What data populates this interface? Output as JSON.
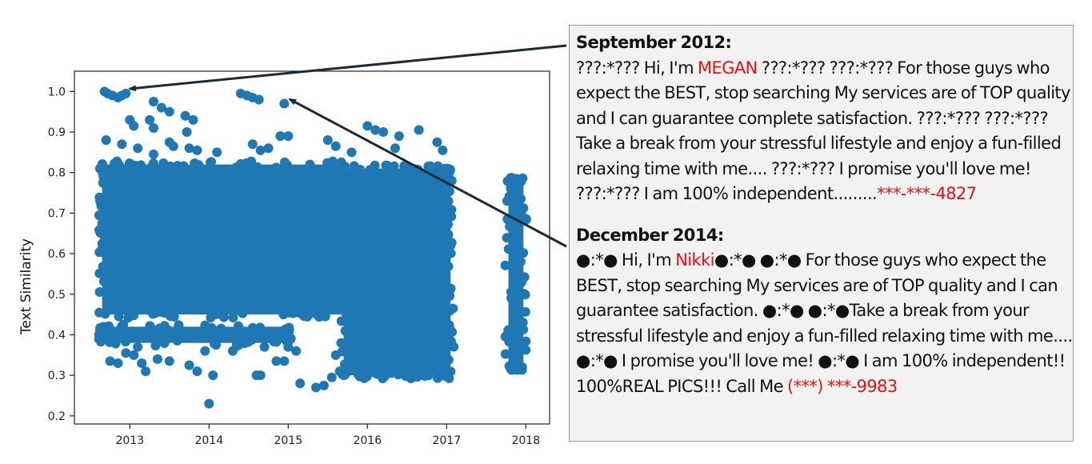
{
  "chart_data": {
    "type": "scatter",
    "title": "",
    "xlabel": "",
    "ylabel": "Text Similarity",
    "xlim": [
      2012.3,
      2018.3
    ],
    "ylim": [
      0.18,
      1.05
    ],
    "xticks": [
      "2013",
      "2014",
      "2015",
      "2016",
      "2017",
      "2018"
    ],
    "yticks": [
      "0.2",
      "0.3",
      "0.4",
      "0.5",
      "0.6",
      "0.7",
      "0.8",
      "0.9",
      "1.0"
    ],
    "grid": false,
    "color": "#1f77b4",
    "dense_regions": [
      {
        "x": [
          2012.65,
          2015.7
        ],
        "y": [
          0.45,
          0.82
        ]
      },
      {
        "x": [
          2015.7,
          2017.05
        ],
        "y": [
          0.3,
          0.81
        ]
      },
      {
        "x": [
          2012.65,
          2015.0
        ],
        "y": [
          0.38,
          0.42
        ]
      },
      {
        "x": [
          2017.78,
          2017.97
        ],
        "y": [
          0.32,
          0.78
        ]
      }
    ],
    "points": [
      [
        2012.68,
        1.0
      ],
      [
        2012.72,
        0.995
      ],
      [
        2012.78,
        0.99
      ],
      [
        2012.85,
        0.985
      ],
      [
        2012.9,
        0.99
      ],
      [
        2012.95,
        0.995
      ],
      [
        2013.3,
        0.975
      ],
      [
        2014.4,
        0.995
      ],
      [
        2014.48,
        0.99
      ],
      [
        2014.55,
        0.985
      ],
      [
        2014.63,
        0.98
      ],
      [
        2014.95,
        0.97
      ],
      [
        2012.7,
        0.88
      ],
      [
        2012.9,
        0.87
      ],
      [
        2013.0,
        0.93
      ],
      [
        2013.05,
        0.915
      ],
      [
        2013.25,
        0.93
      ],
      [
        2013.3,
        0.91
      ],
      [
        2013.4,
        0.96
      ],
      [
        2013.5,
        0.95
      ],
      [
        2013.7,
        0.94
      ],
      [
        2013.72,
        0.9
      ],
      [
        2013.8,
        0.93
      ],
      [
        2013.5,
        0.875
      ],
      [
        2013.55,
        0.865
      ],
      [
        2013.1,
        0.86
      ],
      [
        2013.3,
        0.845
      ],
      [
        2013.75,
        0.86
      ],
      [
        2013.85,
        0.855
      ],
      [
        2014.1,
        0.85
      ],
      [
        2014.55,
        0.87
      ],
      [
        2014.65,
        0.855
      ],
      [
        2014.9,
        0.89
      ],
      [
        2015.0,
        0.89
      ],
      [
        2014.75,
        0.86
      ],
      [
        2015.5,
        0.88
      ],
      [
        2015.6,
        0.865
      ],
      [
        2015.8,
        0.85
      ],
      [
        2016.0,
        0.915
      ],
      [
        2016.1,
        0.905
      ],
      [
        2016.2,
        0.9
      ],
      [
        2016.4,
        0.89
      ],
      [
        2016.65,
        0.905
      ],
      [
        2016.88,
        0.875
      ],
      [
        2016.95,
        0.855
      ],
      [
        2016.35,
        0.86
      ],
      [
        2014.0,
        0.23
      ],
      [
        2012.75,
        0.335
      ],
      [
        2012.85,
        0.33
      ],
      [
        2012.95,
        0.355
      ],
      [
        2013.05,
        0.35
      ],
      [
        2013.15,
        0.33
      ],
      [
        2013.2,
        0.31
      ],
      [
        2013.35,
        0.34
      ],
      [
        2013.5,
        0.335
      ],
      [
        2013.75,
        0.325
      ],
      [
        2013.85,
        0.31
      ],
      [
        2014.05,
        0.3
      ],
      [
        2014.6,
        0.3
      ],
      [
        2014.65,
        0.3
      ],
      [
        2014.85,
        0.335
      ],
      [
        2014.95,
        0.335
      ],
      [
        2015.0,
        0.37
      ],
      [
        2015.15,
        0.28
      ],
      [
        2015.35,
        0.27
      ],
      [
        2015.45,
        0.275
      ],
      [
        2015.55,
        0.295
      ],
      [
        2015.6,
        0.35
      ],
      [
        2015.65,
        0.31
      ],
      [
        2015.7,
        0.3
      ],
      [
        2013.95,
        0.36
      ],
      [
        2014.3,
        0.36
      ],
      [
        2015.1,
        0.36
      ],
      [
        2013.1,
        0.37
      ],
      [
        2014.7,
        0.37
      ]
    ]
  },
  "textbox": {
    "s1": {
      "title": "September 2012:",
      "parts": [
        {
          "text": "???:*??? Hi, I'm ",
          "red": false
        },
        {
          "text": "MEGAN",
          "red": true
        },
        {
          "text": " ???:*???  ???:*??? For those guys who expect the BEST, stop searching My services are of TOP quality and I can guarantee complete satisfaction. ???:*???  ???:*???Take a break from your stressful lifestyle and enjoy a fun-filled relaxing time with me.... ???:*??? I promise you'll love me! ???:*??? I am 100% independent.........",
          "red": false
        },
        {
          "text": "***-***-4827",
          "red": true
        }
      ]
    },
    "s2": {
      "title": "December 2014:",
      "parts": [
        {
          "text": "●:*● Hi, I'm ",
          "red": false
        },
        {
          "text": "Nikki",
          "red": true
        },
        {
          "text": "●:*●  ●:*● For those guys who expect the BEST, stop searching  My services are of TOP quality and I can guarantee satisfaction. ●:*●   ●:*●Take a break from your stressful lifestyle and enjoy a fun-filled  relaxing time with me.... ●:*●  I promise you'll love me! ●:*●  I am 100% independent!! 100%REAL PICS!!!  Call Me  ",
          "red": false
        },
        {
          "text": "(***) ***-9983",
          "red": true
        }
      ]
    }
  }
}
